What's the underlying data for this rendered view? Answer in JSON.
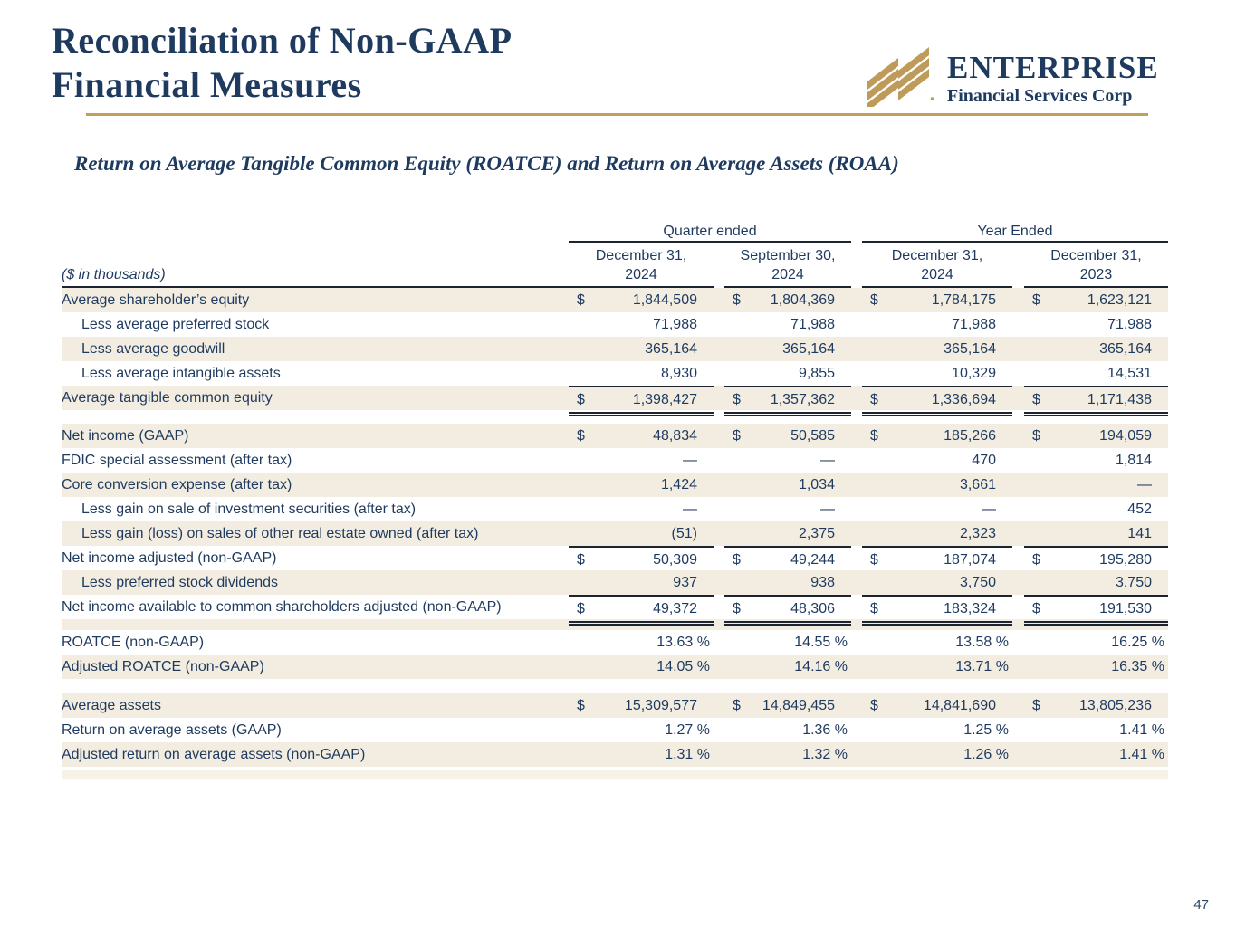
{
  "page": {
    "number": "47"
  },
  "colors": {
    "navy": "#1f3a5f",
    "gold": "#bf9b5a",
    "rule_gold": "#c1a157",
    "line": "#1b2430",
    "beige": "#f2ede0",
    "white": "#ffffff",
    "beige_light": "#f7f2e8"
  },
  "icons": {
    "logo": "enterprise-diagonal-stripes-logo"
  },
  "header": {
    "title_line1": "Reconciliation of Non-GAAP",
    "title_line2": "Financial Measures",
    "logo": {
      "name": "ENTERPRISE",
      "subname": "Financial Services Corp"
    }
  },
  "subtitle": "Return on Average Tangible Common Equity (ROATCE) and Return on Average Assets (ROAA)",
  "table": {
    "units_label": "($ in thousands)",
    "groups": [
      {
        "label": "Quarter ended",
        "span": 2
      },
      {
        "label": "Year Ended",
        "span": 2
      }
    ],
    "columns": [
      {
        "line1": "December 31,",
        "line2": "2024"
      },
      {
        "line1": "September 30,",
        "line2": "2024"
      },
      {
        "line1": "December 31,",
        "line2": "2024"
      },
      {
        "line1": "December 31,",
        "line2": "2023"
      }
    ],
    "rows": [
      {
        "label": "Average shareholder’s equity",
        "indent": false,
        "bg": "beige",
        "dollar": true,
        "values": [
          "1,844,509",
          "1,804,369",
          "1,784,175",
          "1,623,121"
        ]
      },
      {
        "label": "Less average preferred stock",
        "indent": true,
        "bg": "white",
        "values": [
          "71,988",
          "71,988",
          "71,988",
          "71,988"
        ]
      },
      {
        "label": "Less average goodwill",
        "indent": true,
        "bg": "beige",
        "values": [
          "365,164",
          "365,164",
          "365,164",
          "365,164"
        ]
      },
      {
        "label": "Less average intangible assets",
        "indent": true,
        "bg": "white",
        "values": [
          "8,930",
          "9,855",
          "10,329",
          "14,531"
        ]
      },
      {
        "label": "Average tangible common equity",
        "indent": false,
        "bg": "beige",
        "dollar": true,
        "rule_top": true,
        "rule_bottom": "double",
        "values": [
          "1,398,427",
          "1,357,362",
          "1,336,694",
          "1,171,438"
        ]
      },
      {
        "spacer": true,
        "bg": "white",
        "height": 15
      },
      {
        "label": "Net income (GAAP)",
        "indent": false,
        "bg": "beige",
        "dollar": true,
        "values": [
          "48,834",
          "50,585",
          "185,266",
          "194,059"
        ]
      },
      {
        "label": "FDIC special assessment (after tax)",
        "indent": false,
        "bg": "white",
        "values": [
          "—",
          "—",
          "470",
          "1,814"
        ]
      },
      {
        "label": "Core conversion expense (after tax)",
        "indent": false,
        "bg": "beige",
        "values": [
          "1,424",
          "1,034",
          "3,661",
          "—"
        ]
      },
      {
        "label": "Less gain on sale of investment securities (after tax)",
        "indent": true,
        "bg": "white",
        "values": [
          "—",
          "—",
          "—",
          "452"
        ]
      },
      {
        "label": "Less gain (loss) on sales of other real estate owned (after tax)",
        "indent": true,
        "bg": "beige",
        "values": [
          "(51)",
          "2,375",
          "2,323",
          "141"
        ]
      },
      {
        "label": "Net income adjusted (non-GAAP)",
        "indent": false,
        "bg": "white",
        "dollar": true,
        "rule_top": true,
        "values": [
          "50,309",
          "49,244",
          "187,074",
          "195,280"
        ]
      },
      {
        "label": "Less preferred stock dividends",
        "indent": true,
        "bg": "beige",
        "values": [
          "937",
          "938",
          "3,750",
          "3,750"
        ]
      },
      {
        "label": "Net income available to common shareholders adjusted (non-GAAP)",
        "indent": false,
        "bg": "white",
        "dollar": true,
        "rule_top": true,
        "rule_bottom": "double",
        "values": [
          "49,372",
          "48,306",
          "183,324",
          "191,530"
        ]
      },
      {
        "spacer": true,
        "bg": "beige",
        "height": 12
      },
      {
        "label": "ROATCE (non-GAAP)",
        "indent": false,
        "bg": "white",
        "pct": true,
        "values": [
          "13.63 %",
          "14.55 %",
          "13.58 %",
          "16.25 %"
        ]
      },
      {
        "label": "Adjusted ROATCE (non-GAAP)",
        "indent": false,
        "bg": "beige",
        "pct": true,
        "values": [
          "14.05 %",
          "14.16 %",
          "13.71 %",
          "16.35 %"
        ]
      },
      {
        "spacer": true,
        "bg": "white",
        "height": 16
      },
      {
        "label": "Average assets",
        "indent": false,
        "bg": "beige",
        "dollar": true,
        "values": [
          "15,309,577",
          "14,849,455",
          "14,841,690",
          "13,805,236"
        ]
      },
      {
        "label": "Return on average assets (GAAP)",
        "indent": false,
        "bg": "white",
        "pct": true,
        "values": [
          "1.27 %",
          "1.36 %",
          "1.25 %",
          "1.41 %"
        ]
      },
      {
        "label": "Adjusted return on average assets (non-GAAP)",
        "indent": false,
        "bg": "beige",
        "pct": true,
        "values": [
          "1.31 %",
          "1.32 %",
          "1.26 %",
          "1.41 %"
        ]
      },
      {
        "spacer": true,
        "bg": "white",
        "height": 4
      },
      {
        "spacer": true,
        "bg": "beige_light",
        "height": 10
      }
    ]
  }
}
